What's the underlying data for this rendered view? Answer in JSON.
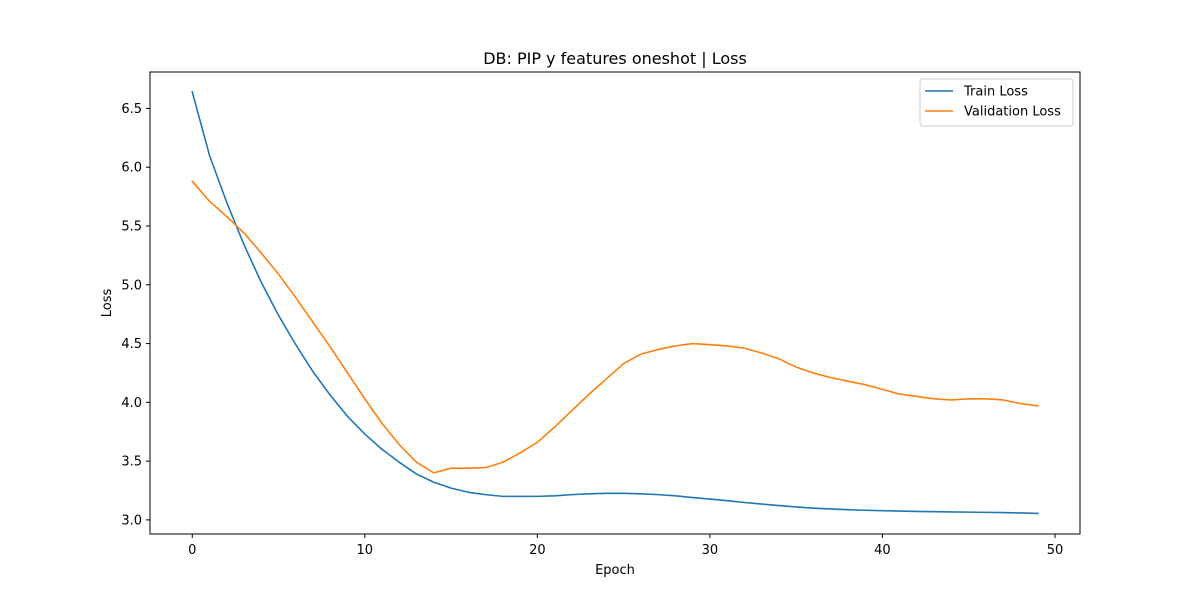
{
  "chart_data": {
    "type": "line",
    "title": "DB: PIP y features oneshot | Loss",
    "xlabel": "Epoch",
    "ylabel": "Loss",
    "xlim": [
      -2.45,
      51.45
    ],
    "ylim": [
      2.88,
      6.81
    ],
    "xticks": [
      0,
      10,
      20,
      30,
      40,
      50
    ],
    "yticks": [
      3.0,
      3.5,
      4.0,
      4.5,
      5.0,
      5.5,
      6.0,
      6.5
    ],
    "ytick_labels": [
      "3.0",
      "3.5",
      "4.0",
      "4.5",
      "5.0",
      "5.5",
      "6.0",
      "6.5"
    ],
    "legend_position": "top-right",
    "grid": false,
    "x": [
      0,
      1,
      2,
      3,
      4,
      5,
      6,
      7,
      8,
      9,
      10,
      11,
      12,
      13,
      14,
      15,
      16,
      17,
      18,
      19,
      20,
      21,
      22,
      23,
      24,
      25,
      26,
      27,
      28,
      29,
      30,
      31,
      32,
      33,
      34,
      35,
      36,
      37,
      38,
      39,
      40,
      41,
      42,
      43,
      44,
      45,
      46,
      47,
      48,
      49
    ],
    "series": [
      {
        "name": "Train Loss",
        "color": "#1f77b4",
        "values": [
          6.64,
          6.1,
          5.7,
          5.34,
          5.02,
          4.74,
          4.49,
          4.26,
          4.06,
          3.88,
          3.73,
          3.6,
          3.49,
          3.39,
          3.32,
          3.27,
          3.235,
          3.215,
          3.2,
          3.2,
          3.2,
          3.205,
          3.215,
          3.222,
          3.226,
          3.226,
          3.222,
          3.215,
          3.205,
          3.19,
          3.177,
          3.163,
          3.148,
          3.135,
          3.122,
          3.11,
          3.1,
          3.093,
          3.087,
          3.082,
          3.078,
          3.075,
          3.072,
          3.07,
          3.068,
          3.066,
          3.064,
          3.062,
          3.059,
          3.055
        ]
      },
      {
        "name": "Validation Loss",
        "color": "#ff7f0e",
        "values": [
          5.88,
          5.71,
          5.58,
          5.44,
          5.27,
          5.09,
          4.89,
          4.68,
          4.47,
          4.25,
          4.03,
          3.82,
          3.64,
          3.49,
          3.4,
          3.44,
          3.44,
          3.445,
          3.49,
          3.57,
          3.66,
          3.79,
          3.93,
          4.07,
          4.2,
          4.33,
          4.41,
          4.45,
          4.48,
          4.5,
          4.49,
          4.48,
          4.46,
          4.42,
          4.37,
          4.3,
          4.25,
          4.21,
          4.18,
          4.15,
          4.11,
          4.07,
          4.05,
          4.03,
          4.02,
          4.03,
          4.03,
          4.02,
          3.99,
          3.97
        ]
      }
    ]
  }
}
